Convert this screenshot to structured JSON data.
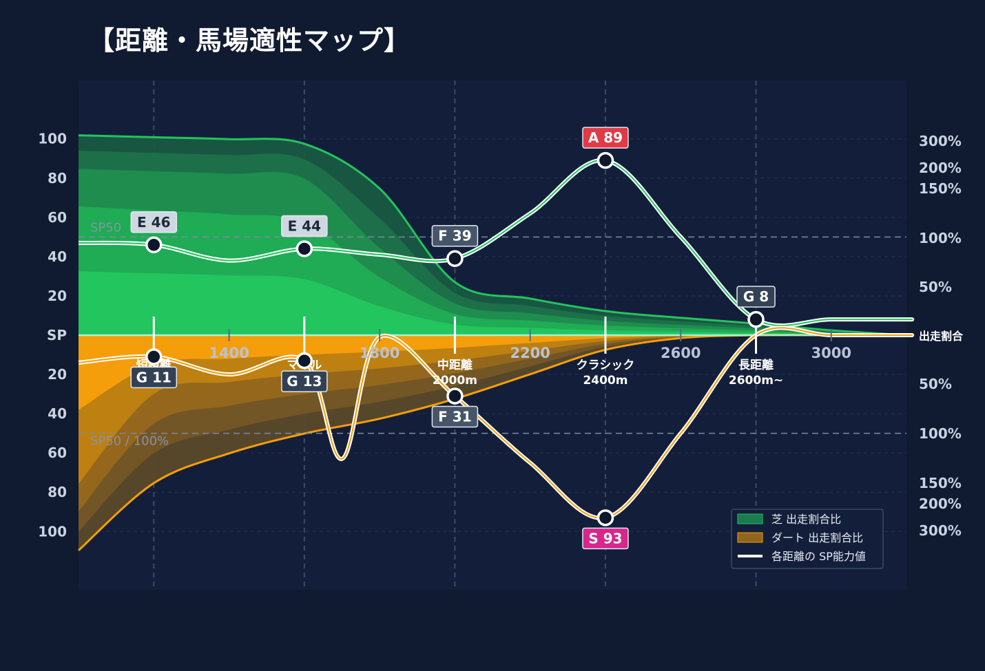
{
  "title": "【距離・馬場適性マップ】",
  "chart_data": {
    "type": "area",
    "x_ticks": [
      1400,
      1800,
      2200,
      2600,
      3000
    ],
    "left_axis": {
      "center_label": "SP",
      "top_ticks": [
        20,
        40,
        60,
        80,
        100
      ],
      "bottom_ticks": [
        20,
        40,
        60,
        80,
        100
      ]
    },
    "right_axis": {
      "center_label": "出走割合",
      "top_ticks": [
        "300%",
        "200%",
        "150%",
        "100%",
        "50%"
      ],
      "bottom_ticks": [
        "50%",
        "100%",
        "150%",
        "200%",
        "300%"
      ]
    },
    "reference_lines": {
      "top_label": "SP50",
      "bottom_label": "SP50 / 100%"
    },
    "distance_categories": [
      {
        "label": "短距離",
        "sub": "",
        "x": 1200,
        "turf": {
          "grade": "E",
          "sp": 46
        },
        "dirt": {
          "grade": "G",
          "sp": 11
        }
      },
      {
        "label": "マイル",
        "sub": "",
        "x": 1600,
        "turf": {
          "grade": "E",
          "sp": 44
        },
        "dirt": {
          "grade": "G",
          "sp": 13
        }
      },
      {
        "label": "中距離",
        "sub": "2000m",
        "x": 2000,
        "turf": {
          "grade": "F",
          "sp": 39
        },
        "dirt": {
          "grade": "F",
          "sp": 31
        }
      },
      {
        "label": "クラシック",
        "sub": "2400m",
        "x": 2400,
        "turf": {
          "grade": "A",
          "sp": 89
        },
        "dirt": {
          "grade": "S",
          "sp": 93
        }
      },
      {
        "label": "長距離",
        "sub": "2600m~",
        "x": 2800,
        "turf": {
          "grade": "G",
          "sp": 8
        },
        "dirt": null
      }
    ],
    "series": [
      {
        "name": "芝 出走割合比",
        "color": "#22c55e",
        "x": [
          1000,
          1200,
          1400,
          1600,
          1800,
          2000,
          2200,
          2400,
          2600,
          2800,
          3000,
          3200
        ],
        "values": [
          330,
          320,
          310,
          290,
          150,
          55,
          38,
          25,
          18,
          12,
          5,
          0
        ]
      },
      {
        "name": "ダート 出走割合比",
        "color": "#f59e0b",
        "x": [
          1000,
          1200,
          1400,
          1600,
          1800,
          2000,
          2200,
          2400,
          2600,
          2800,
          3000,
          3200
        ],
        "values": [
          380,
          150,
          120,
          100,
          85,
          65,
          40,
          15,
          3,
          0,
          0,
          0
        ]
      },
      {
        "name": "各距離の SP能力値",
        "color": "#ffffff",
        "x": [
          1000,
          1200,
          1400,
          1600,
          1800,
          2000,
          2200,
          2400,
          2600,
          2800,
          3000,
          3200
        ],
        "turf_sp": [
          47,
          46,
          38,
          44,
          41,
          39,
          62,
          89,
          50,
          8,
          8,
          8
        ],
        "dirt_sp": [
          14,
          11,
          20,
          13,
          0,
          31,
          65,
          93,
          50,
          0,
          0,
          0
        ]
      }
    ],
    "dirt_sp_dip": {
      "x": 1700,
      "value": 63
    },
    "grid": true,
    "legend_position": "bottom-right"
  }
}
